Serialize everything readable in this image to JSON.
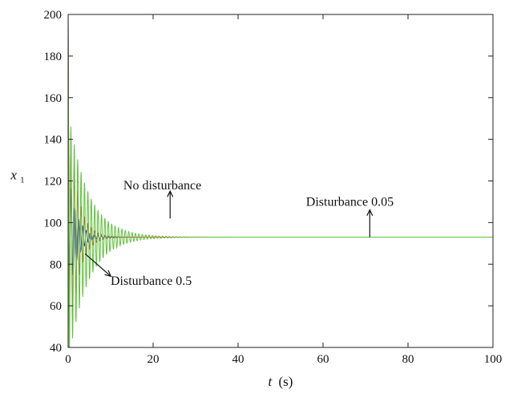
{
  "chart_data": {
    "type": "line",
    "title": "",
    "xlabel": {
      "var": "t",
      "unit": "(s)"
    },
    "ylabel": {
      "var": "x",
      "sub": "1"
    },
    "xlim": [
      0,
      100
    ],
    "ylim": [
      40,
      200
    ],
    "xticks": [
      0,
      20,
      40,
      60,
      80,
      100
    ],
    "yticks": [
      40,
      60,
      80,
      100,
      120,
      140,
      160,
      180,
      200
    ],
    "xtick_labels": [
      "0",
      "20",
      "40",
      "60",
      "80",
      "100"
    ],
    "ytick_labels": [
      "40",
      "60",
      "80",
      "100",
      "120",
      "140",
      "160",
      "180",
      "200"
    ],
    "grid": false,
    "steady_state": 93,
    "series": [
      {
        "color": "#2a3fb0",
        "x0": 200,
        "amp": 30,
        "decay": 0.55,
        "period": 0.9,
        "min": 60
      },
      {
        "color": "#d9453a",
        "x0": 200,
        "amp": 60,
        "decay": 0.5,
        "period": 0.8,
        "min": 62
      },
      {
        "color": "#5fc23c",
        "x0": 200,
        "amp": 58,
        "decay": 0.22,
        "period": 0.8,
        "min": 44
      }
    ],
    "annotations": [
      {
        "text": "No disturbance",
        "x": 24,
        "y": 102,
        "text_x": 13,
        "text_y": 116
      },
      {
        "text": "Disturbance 0.05",
        "x": 71,
        "y": 93,
        "text_x": 56,
        "text_y": 108
      },
      {
        "text": "Disturbance 0.5",
        "x": 4,
        "y": 85,
        "text_x": 10,
        "text_y": 70
      }
    ]
  }
}
